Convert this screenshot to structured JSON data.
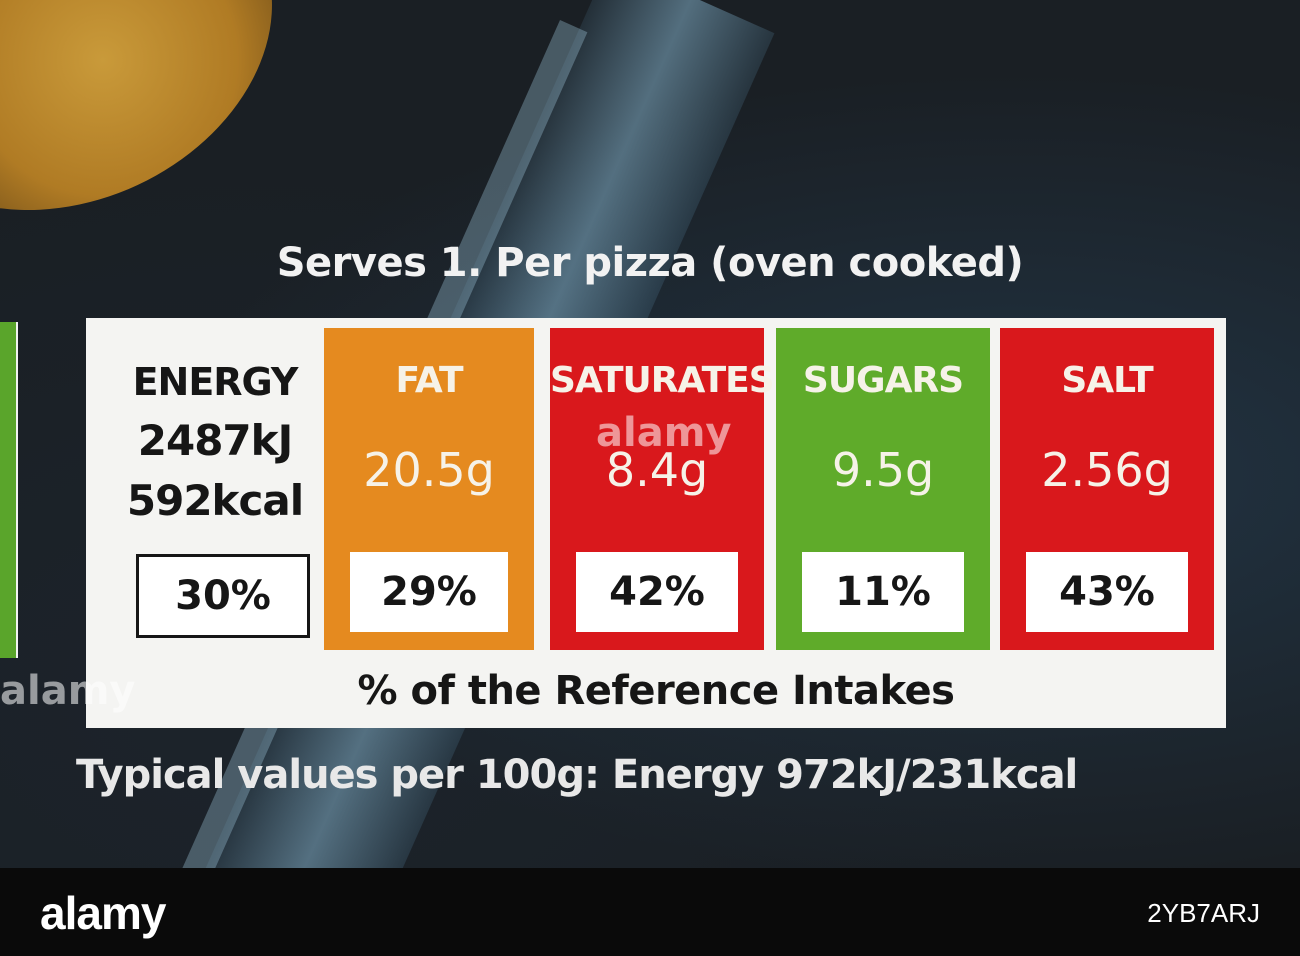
{
  "label": {
    "heading": "Serves 1. Per pizza (oven cooked)",
    "energy": {
      "label": "ENERGY",
      "kj": "2487kJ",
      "kcal": "592kcal",
      "percent": "30%"
    },
    "nutrients": [
      {
        "label": "FAT",
        "value": "20.5g",
        "percent": "29%",
        "color": "#e58a1f"
      },
      {
        "label": "SATURATES",
        "value": "8.4g",
        "percent": "42%",
        "color": "#d9181c"
      },
      {
        "label": "SUGARS",
        "value": "9.5g",
        "percent": "11%",
        "color": "#5fab2a"
      },
      {
        "label": "SALT",
        "value": "2.56g",
        "percent": "43%",
        "color": "#d9181c"
      }
    ],
    "reference_text": "% of the Reference Intakes",
    "typical_values": "Typical values per 100g: Energy 972kJ/231kcal"
  },
  "watermark": {
    "center": "alamy",
    "left": "alamy"
  },
  "footer": {
    "brand": "alamy",
    "image_id": "2YB7ARJ"
  }
}
